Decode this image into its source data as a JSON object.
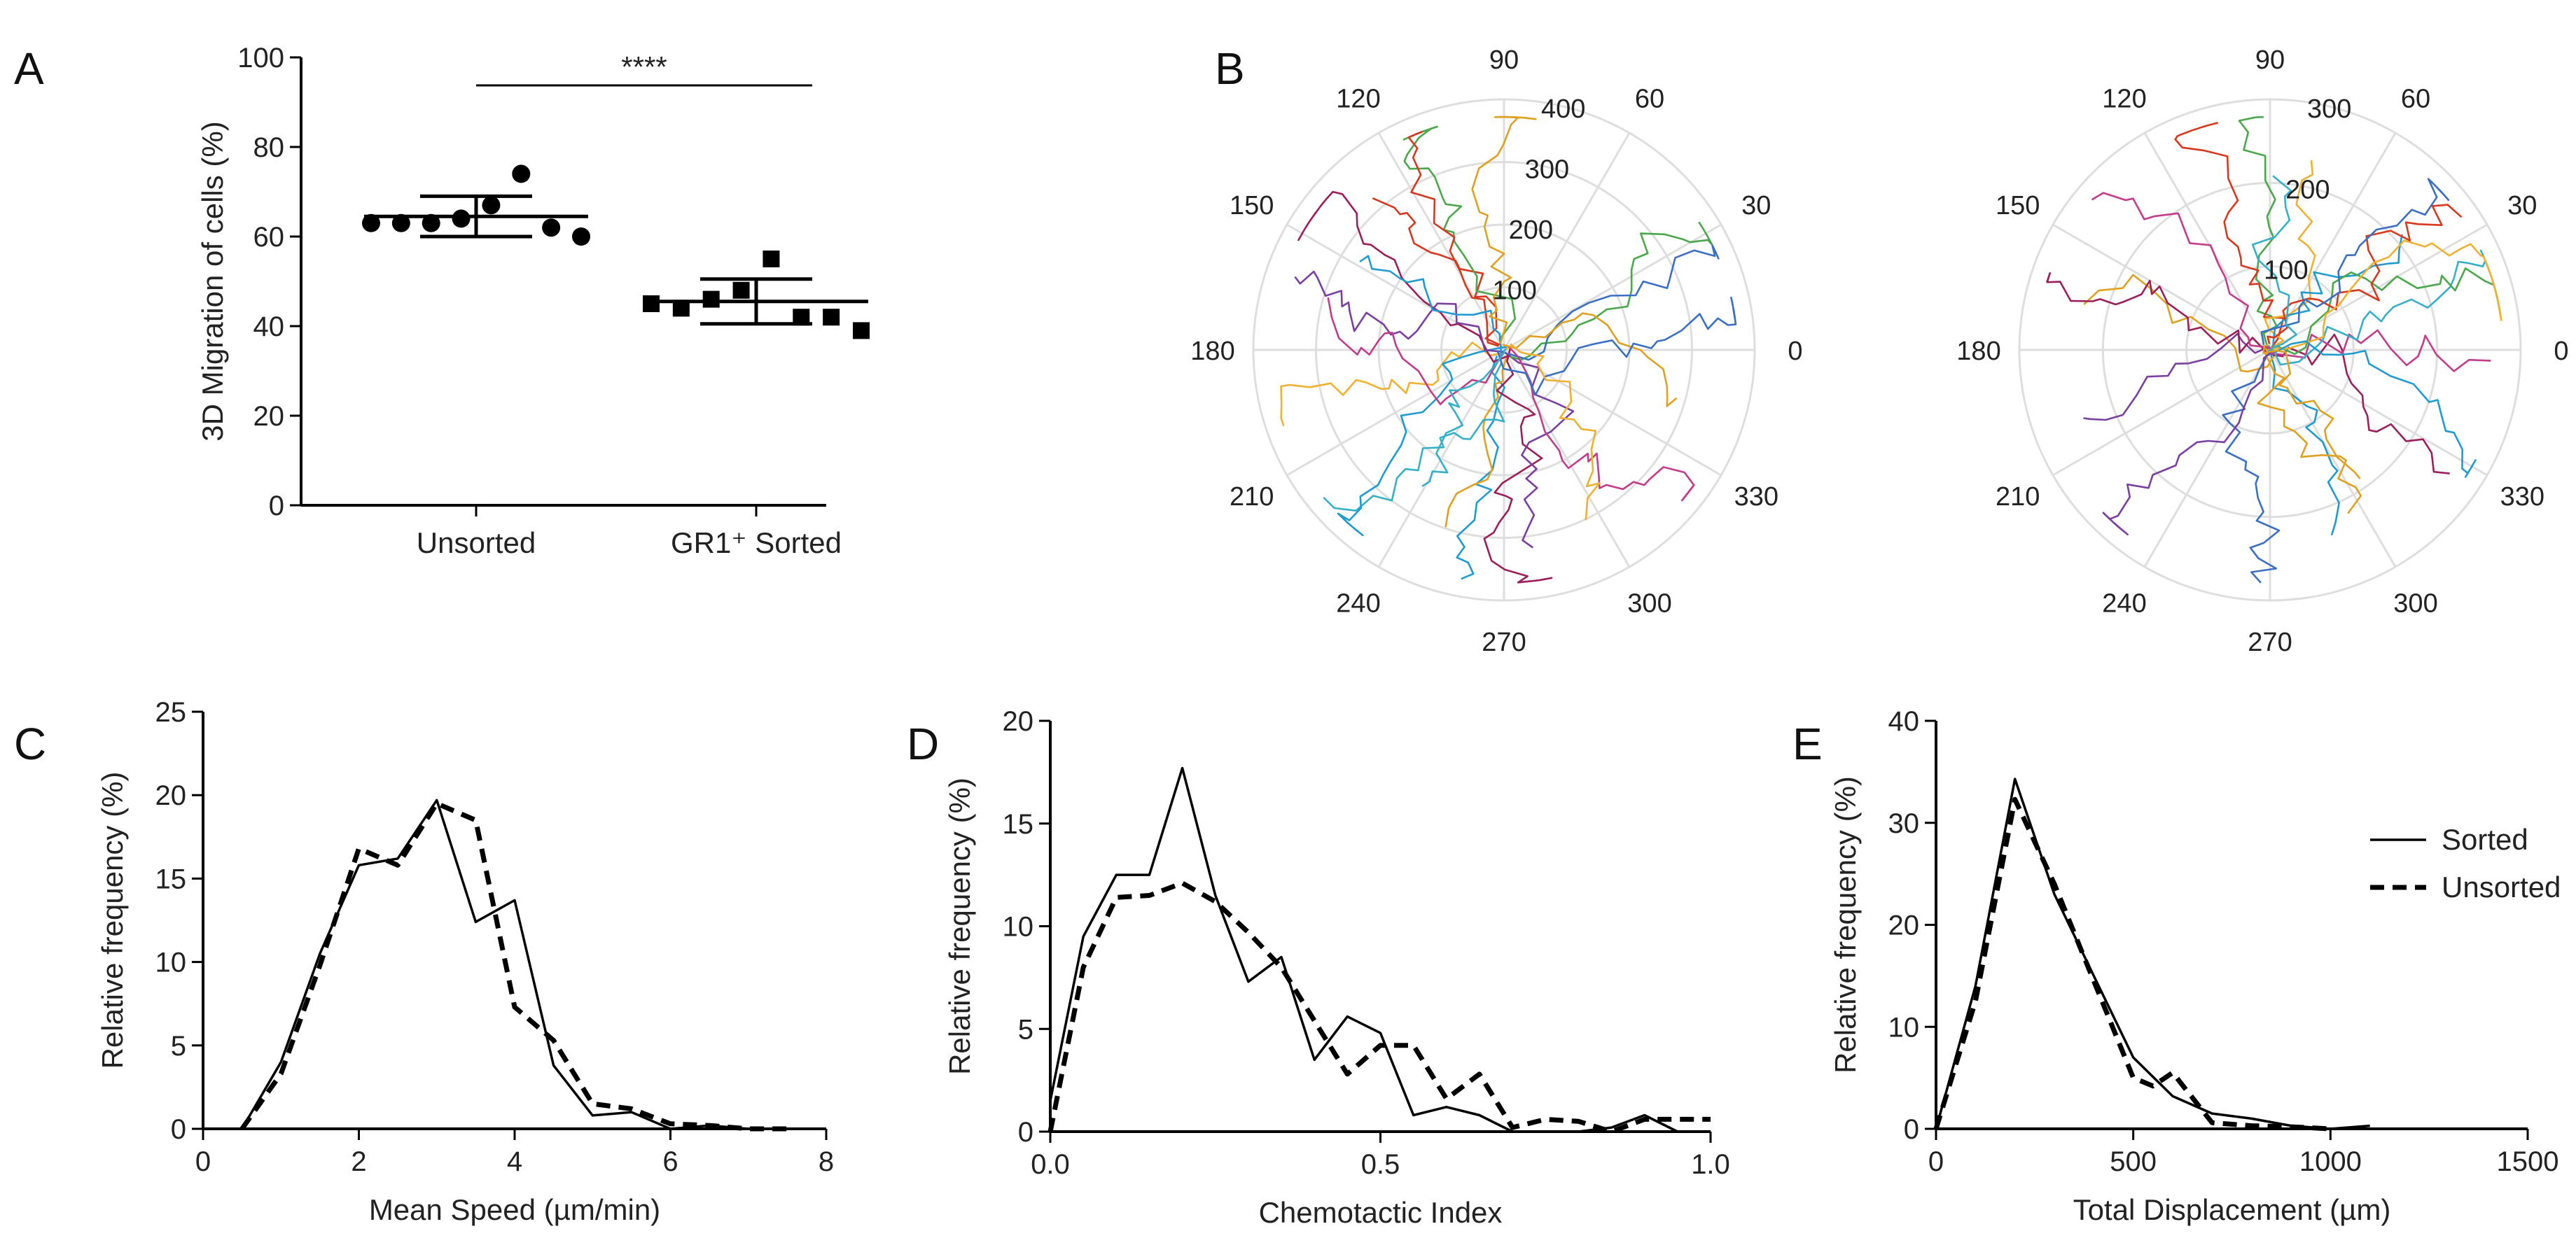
{
  "colors": {
    "ink": "#000000",
    "grid": "#dedede",
    "tracks": [
      "#1f9bd1",
      "#e0a020",
      "#9b1f5a",
      "#7a3fa0",
      "#4aa84a",
      "#d9381e",
      "#3a6fc4",
      "#f0b030",
      "#c33c8a",
      "#36b0c9"
    ]
  },
  "panels": {
    "A": "A",
    "B": "B",
    "C": "C",
    "D": "D",
    "E": "E"
  },
  "chart_data": [
    {
      "id": "A",
      "type": "scatter",
      "ylabel": "3D Migration of cells (%)",
      "xlabel": "",
      "ylim": [
        0,
        100
      ],
      "yticks": [
        0,
        20,
        40,
        60,
        80,
        100
      ],
      "categories": [
        "Unsorted",
        "GR1⁺ Sorted"
      ],
      "significance": "****",
      "groups": [
        {
          "name": "Unsorted",
          "marker": "circle",
          "points": [
            63,
            63,
            63,
            64,
            67,
            74,
            62,
            60
          ],
          "mean": 64.5,
          "sd": 4.5
        },
        {
          "name": "GR1⁺ Sorted",
          "marker": "square",
          "points": [
            45,
            44,
            46,
            48,
            55,
            42,
            42,
            39
          ],
          "mean": 45.5,
          "sd": 5
        }
      ]
    },
    {
      "id": "B",
      "type": "polar",
      "angle_labels": [
        "90",
        "60",
        "30",
        "0",
        "330",
        "300",
        "270",
        "240",
        "210",
        "180",
        "150",
        "120"
      ],
      "plots": [
        {
          "name": "left",
          "radial_labels": [
            "100",
            "200",
            "300",
            "400"
          ],
          "rmax": 400
        },
        {
          "name": "right",
          "radial_labels": [
            "100",
            "200",
            "300"
          ],
          "rmax": 300
        }
      ]
    },
    {
      "id": "C",
      "type": "line",
      "xlabel": "Mean Speed (µm/min)",
      "ylabel": "Relative frequency (%)",
      "xlim": [
        0,
        8
      ],
      "ylim": [
        0,
        25
      ],
      "xticks": [
        0,
        2,
        4,
        6,
        8
      ],
      "yticks": [
        0,
        5,
        10,
        15,
        20,
        25
      ],
      "series": [
        {
          "name": "Sorted",
          "style": "solid",
          "x": [
            0.5,
            1.0,
            1.5,
            2.0,
            2.5,
            3.0,
            3.5,
            4.0,
            4.5,
            5.0,
            5.5,
            6.0,
            6.5,
            7.0
          ],
          "y": [
            0,
            4,
            10.5,
            15.8,
            16.2,
            19.7,
            12.4,
            13.7,
            3.8,
            0.8,
            1.0,
            0,
            0.2,
            0
          ]
        },
        {
          "name": "Unsorted",
          "style": "dashed",
          "x": [
            0.5,
            1.0,
            1.5,
            2.0,
            2.5,
            3.0,
            3.5,
            4.0,
            4.5,
            5.0,
            5.5,
            6.0,
            6.5,
            7.0,
            7.5
          ],
          "y": [
            0,
            3.3,
            9.8,
            16.8,
            15.8,
            19.5,
            18.5,
            7.3,
            5.3,
            1.5,
            1.2,
            0.3,
            0.2,
            0,
            0
          ]
        }
      ]
    },
    {
      "id": "D",
      "type": "line",
      "xlabel": "Chemotactic Index",
      "ylabel": "Relative frequency (%)",
      "xlim": [
        0,
        1.0
      ],
      "ylim": [
        0,
        20
      ],
      "xticks": [
        0,
        0.5,
        1.0
      ],
      "xtick_labels": [
        "0.0",
        "0.5",
        "1.0"
      ],
      "yticks": [
        0,
        5,
        10,
        15,
        20
      ],
      "series": [
        {
          "name": "Sorted",
          "style": "solid",
          "x": [
            0.0,
            0.05,
            0.1,
            0.15,
            0.2,
            0.25,
            0.3,
            0.35,
            0.4,
            0.45,
            0.5,
            0.55,
            0.6,
            0.65,
            0.7,
            0.75,
            0.8,
            0.85,
            0.9,
            0.95
          ],
          "y": [
            1.5,
            9.5,
            12.5,
            12.5,
            17.7,
            11.5,
            7.3,
            8.5,
            3.5,
            5.6,
            4.8,
            0.8,
            1.2,
            0.8,
            0,
            0,
            0,
            0.2,
            0.8,
            0
          ]
        },
        {
          "name": "Unsorted",
          "style": "dashed",
          "x": [
            0.0,
            0.05,
            0.1,
            0.15,
            0.2,
            0.25,
            0.3,
            0.35,
            0.4,
            0.45,
            0.5,
            0.55,
            0.6,
            0.65,
            0.7,
            0.75,
            0.8,
            0.85,
            0.9,
            0.95,
            1.0
          ],
          "y": [
            0,
            8.0,
            11.4,
            11.5,
            12.1,
            11.2,
            9.7,
            8.0,
            5.4,
            2.8,
            4.2,
            4.2,
            1.6,
            2.8,
            0.2,
            0.6,
            0.5,
            0,
            0.6,
            0.6,
            0.6
          ]
        }
      ]
    },
    {
      "id": "E",
      "type": "line",
      "xlabel": "Total Displacement (µm)",
      "ylabel": "Relative frequency (%)",
      "xlim": [
        0,
        1500
      ],
      "ylim": [
        0,
        40
      ],
      "xticks": [
        0,
        500,
        1000,
        1500
      ],
      "yticks": [
        0,
        10,
        20,
        30,
        40
      ],
      "legend": {
        "placement": "top-right",
        "entries": [
          "Sorted",
          "Unsorted"
        ]
      },
      "series": [
        {
          "name": "Sorted",
          "style": "solid",
          "x": [
            0,
            100,
            200,
            300,
            400,
            500,
            600,
            700,
            800,
            900,
            1000,
            1100
          ],
          "y": [
            0,
            14,
            34.3,
            23,
            15,
            7,
            3.2,
            1.5,
            1.0,
            0.3,
            0,
            0.3
          ]
        },
        {
          "name": "Unsorted",
          "style": "dashed",
          "x": [
            0,
            100,
            200,
            300,
            400,
            500,
            550,
            600,
            700,
            800,
            900,
            1000
          ],
          "y": [
            0,
            12.5,
            32.3,
            24,
            14.5,
            5.0,
            4.2,
            5.5,
            0.6,
            0.3,
            0.2,
            0
          ]
        }
      ]
    }
  ]
}
